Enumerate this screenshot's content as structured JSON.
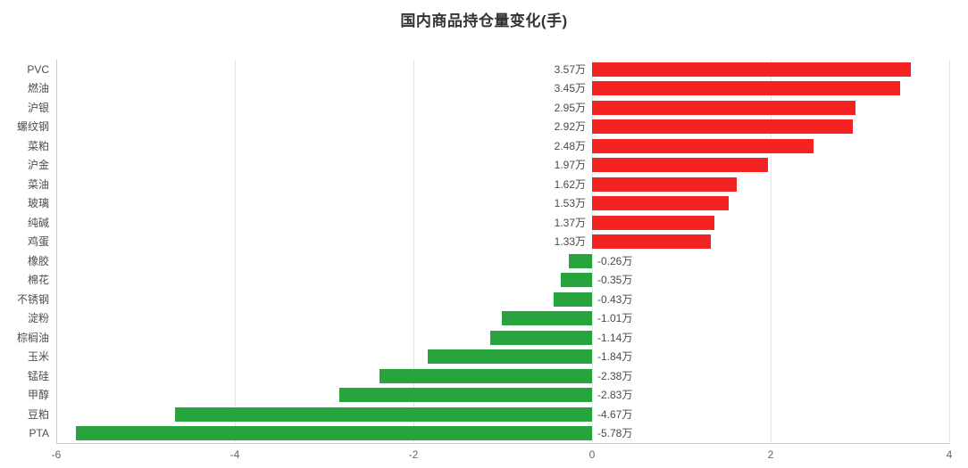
{
  "chart_data": {
    "type": "bar",
    "orientation": "horizontal",
    "title": "国内商品持仓量变化(手)",
    "categories": [
      "PVC",
      "燃油",
      "沪银",
      "螺纹钢",
      "菜粕",
      "沪金",
      "菜油",
      "玻璃",
      "纯碱",
      "鸡蛋",
      "橡胶",
      "棉花",
      "不锈钢",
      "淀粉",
      "棕榈油",
      "玉米",
      "锰硅",
      "甲醇",
      "豆粕",
      "PTA"
    ],
    "values": [
      3.57,
      3.45,
      2.95,
      2.92,
      2.48,
      1.97,
      1.62,
      1.53,
      1.37,
      1.33,
      -0.26,
      -0.35,
      -0.43,
      -1.01,
      -1.14,
      -1.84,
      -2.38,
      -2.83,
      -4.67,
      -5.78
    ],
    "value_labels": [
      "3.57万",
      "3.45万",
      "2.95万",
      "2.92万",
      "2.48万",
      "1.97万",
      "1.62万",
      "1.53万",
      "1.37万",
      "1.33万",
      "-0.26万",
      "-0.35万",
      "-0.43万",
      "-1.01万",
      "-1.14万",
      "-1.84万",
      "-2.38万",
      "-2.83万",
      "-4.67万",
      "-5.78万"
    ],
    "unit": "万",
    "xlabel": "",
    "ylabel": "",
    "xlim": [
      -6,
      4
    ],
    "x_ticks": [
      "-6",
      "-4",
      "-2",
      "0",
      "2",
      "4"
    ],
    "x_tick_values": [
      -6,
      -4,
      -2,
      0,
      2,
      4
    ],
    "grid": "vertical-only",
    "legend": "none",
    "colors": {
      "positive_bar": "#f32323",
      "negative_bar": "#28a43e",
      "grid_line": "#e8e8e8",
      "axis_line": "#cccccc",
      "tick_text": "#666666",
      "category_text": "#4d4d4d",
      "value_text": "#4a4a4a",
      "title_text": "#333333",
      "background": "#ffffff"
    }
  }
}
